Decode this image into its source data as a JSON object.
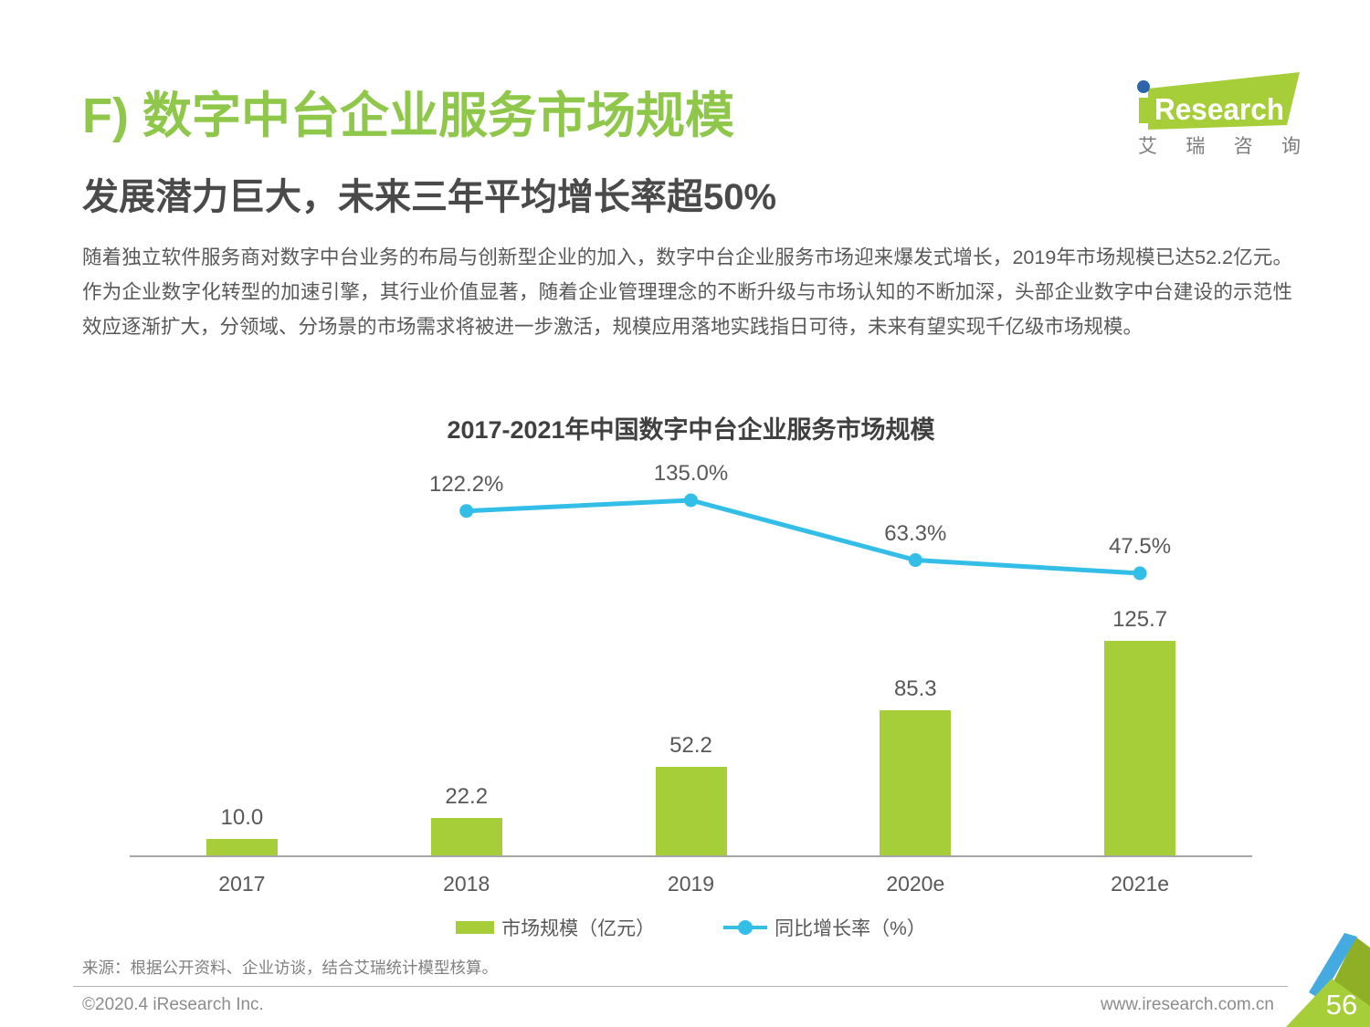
{
  "header": {
    "title": "F) 数字中台企业服务市场规模",
    "subtitle": "发展潜力巨大，未来三年平均增长率超50%",
    "body": "随着独立软件服务商对数字中台业务的布局与创新型企业的加入，数字中台企业服务市场迎来爆发式增长，2019年市场规模已达52.2亿元。作为企业数字化转型的加速引擎，其行业价值显著，随着企业管理理念的不断升级与市场认知的不断加深，头部企业数字中台建设的示范性效应逐渐扩大，分领域、分场景的市场需求将被进一步激活，规模应用落地实践指日可待，未来有望实现千亿级市场规模。"
  },
  "logo": {
    "latin": "Research",
    "chinese_chars": [
      "艾",
      "瑞",
      "咨",
      "询"
    ]
  },
  "chart_data": {
    "type": "bar",
    "title": "2017-2021年中国数字中台企业服务市场规模",
    "categories": [
      "2017",
      "2018",
      "2019",
      "2020e",
      "2021e"
    ],
    "series": [
      {
        "name": "市场规模（亿元）",
        "type": "bar",
        "color": "#A5CE39",
        "values": [
          10.0,
          22.2,
          52.2,
          85.3,
          125.7
        ],
        "labels": [
          "10.0",
          "22.2",
          "52.2",
          "85.3",
          "125.7"
        ]
      },
      {
        "name": "同比增长率（%）",
        "type": "line",
        "color": "#33BEE8",
        "values": [
          null,
          122.2,
          135.0,
          63.3,
          47.5
        ],
        "labels": [
          null,
          "122.2%",
          "135.0%",
          "63.3%",
          "47.5%"
        ]
      }
    ],
    "xlabel": "",
    "ylabel": "",
    "grid": false,
    "legend_position": "bottom",
    "ylim_bar": [
      0,
      134
    ],
    "ylim_line_pct": [
      0,
      160
    ]
  },
  "footer": {
    "source": "来源：根据公开资料、企业访谈，结合艾瑞统计模型核算。",
    "copyright": "©2020.4 iResearch Inc.",
    "website": "www.iresearch.com.cn",
    "page_number": "56"
  },
  "colors": {
    "title_green": "#8FC74A",
    "bar_green": "#A5CE39",
    "line_blue": "#33BEE8",
    "logo_dot_blue": "#2D65AD",
    "corner_blue": "#45AADF",
    "corner_olive": "#8FAF26",
    "corner_bright": "#A6CE39"
  }
}
